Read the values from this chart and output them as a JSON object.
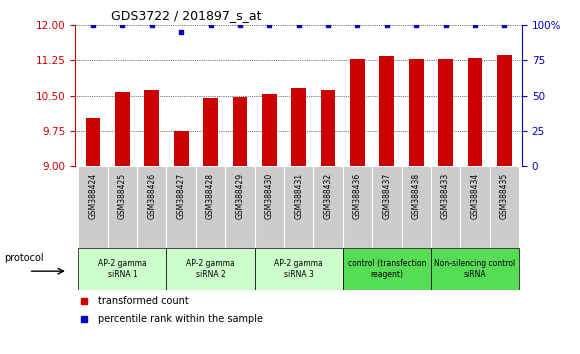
{
  "title": "GDS3722 / 201897_s_at",
  "samples": [
    "GSM388424",
    "GSM388425",
    "GSM388426",
    "GSM388427",
    "GSM388428",
    "GSM388429",
    "GSM388430",
    "GSM388431",
    "GSM388432",
    "GSM388436",
    "GSM388437",
    "GSM388438",
    "GSM388433",
    "GSM388434",
    "GSM388435"
  ],
  "bar_values": [
    10.03,
    10.57,
    10.62,
    9.76,
    10.44,
    10.47,
    10.53,
    10.67,
    10.61,
    11.28,
    11.34,
    11.27,
    11.27,
    11.29,
    11.36
  ],
  "dot_values": [
    100,
    100,
    100,
    95,
    100,
    100,
    100,
    100,
    100,
    100,
    100,
    100,
    100,
    100,
    100
  ],
  "ylim_left": [
    9,
    12
  ],
  "ylim_right": [
    0,
    100
  ],
  "yticks_left": [
    9,
    9.75,
    10.5,
    11.25,
    12
  ],
  "yticks_right": [
    0,
    25,
    50,
    75,
    100
  ],
  "bar_color": "#cc0000",
  "dot_color": "#0000cc",
  "groups": [
    {
      "label": "AP-2 gamma\nsiRNA 1",
      "start": 0,
      "end": 3,
      "color": "#ccffcc"
    },
    {
      "label": "AP-2 gamma\nsiRNA 2",
      "start": 3,
      "end": 6,
      "color": "#ccffcc"
    },
    {
      "label": "AP-2 gamma\nsiRNA 3",
      "start": 6,
      "end": 9,
      "color": "#ccffcc"
    },
    {
      "label": "control (transfection\nreagent)",
      "start": 9,
      "end": 12,
      "color": "#55dd55"
    },
    {
      "label": "Non-silencing control\nsiRNA",
      "start": 12,
      "end": 15,
      "color": "#55dd55"
    }
  ],
  "protocol_label": "protocol",
  "legend_bar_label": "transformed count",
  "legend_dot_label": "percentile rank within the sample",
  "left_axis_color": "#cc0000",
  "right_axis_color": "#0000cc",
  "sample_box_color": "#cccccc",
  "bg_color": "#ffffff"
}
